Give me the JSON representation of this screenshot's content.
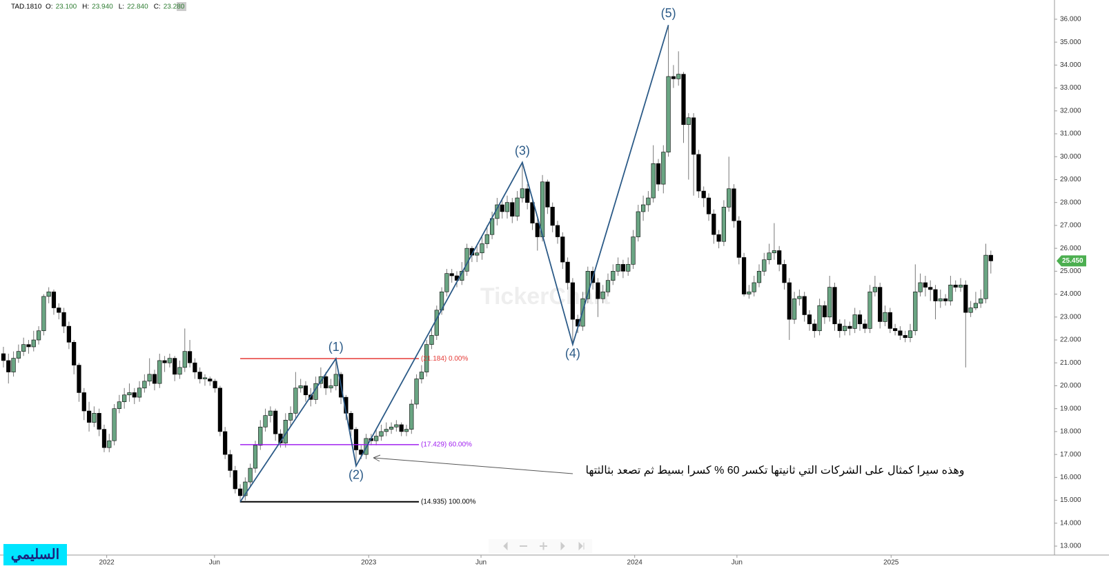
{
  "chart_data": {
    "type": "candlestick",
    "symbol": "TAD.1810",
    "ohlc_header": [
      {
        "key": "O:",
        "value": "23.100"
      },
      {
        "key": "H:",
        "value": "23.940"
      },
      {
        "key": "L:",
        "value": "22.840"
      },
      {
        "key": "C:",
        "value": "23.280"
      }
    ],
    "watermark": "TickerChart",
    "logo": "السليمي",
    "annotation": "وهذه سيرا كمثال على الشركات التي ثانيتها تكسر 60 % كسرا بسيط ثم تصعد بثالثتها",
    "up_color": "#6aa583",
    "down_color": "#000000",
    "xlim": [
      -0.68,
      208.63
    ],
    "ylim": [
      12.61,
      36.84
    ],
    "xticks": [
      {
        "value": 20.5,
        "label": "2022"
      },
      {
        "value": 41.9,
        "label": "Jun"
      },
      {
        "value": 72.5,
        "label": "2023"
      },
      {
        "value": 94.8,
        "label": "Jun"
      },
      {
        "value": 125.3,
        "label": "2024"
      },
      {
        "value": 145.6,
        "label": "Jun"
      },
      {
        "value": 176.2,
        "label": "2025"
      }
    ],
    "yticks": [
      {
        "value": 13,
        "label": "13.000"
      },
      {
        "value": 14,
        "label": "14.000"
      },
      {
        "value": 15,
        "label": "15.000"
      },
      {
        "value": 16,
        "label": "16.000"
      },
      {
        "value": 17,
        "label": "17.000"
      },
      {
        "value": 18,
        "label": "18.000"
      },
      {
        "value": 19,
        "label": "19.000"
      },
      {
        "value": 20,
        "label": "20.000"
      },
      {
        "value": 21,
        "label": "21.000"
      },
      {
        "value": 22,
        "label": "22.000"
      },
      {
        "value": 23,
        "label": "23.000"
      },
      {
        "value": 24,
        "label": "24.000"
      },
      {
        "value": 25,
        "label": "25.000"
      },
      {
        "value": 26,
        "label": "26.000"
      },
      {
        "value": 27,
        "label": "27.000"
      },
      {
        "value": 28,
        "label": "28.000"
      },
      {
        "value": 29,
        "label": "29.000"
      },
      {
        "value": 30,
        "label": "30.000"
      },
      {
        "value": 31,
        "label": "31.000"
      },
      {
        "value": 32,
        "label": "32.000"
      },
      {
        "value": 33,
        "label": "33.000"
      },
      {
        "value": 34,
        "label": "34.000"
      },
      {
        "value": 35,
        "label": "35.000"
      },
      {
        "value": 36,
        "label": "36.000"
      }
    ],
    "last_price": {
      "value": 25.45,
      "label": "25.450",
      "color": "#4caf50"
    },
    "fib_levels": [
      {
        "value": 21.184,
        "label": "(21.184) 0.00%",
        "color": "#e53935"
      },
      {
        "value": 17.429,
        "label": "(17.429) 60.00%",
        "color": "#a020f0"
      },
      {
        "value": 14.935,
        "label": "(14.935) 100.00%",
        "color": "#000000"
      }
    ],
    "waves": [
      {
        "label": null,
        "index": 47,
        "price": 14.935
      },
      {
        "label": "(1)",
        "index": 66,
        "price": 21.184
      },
      {
        "label": "(2)",
        "index": 70,
        "price": 16.5
      },
      {
        "label": "(3)",
        "index": 103,
        "price": 29.75
      },
      {
        "label": "(4)",
        "index": 113,
        "price": 21.8
      },
      {
        "label": "(5)",
        "index": 132,
        "price": 35.75
      }
    ],
    "wave_color": "#2b5a87",
    "candles": [
      [
        21.4,
        21.7,
        20.8,
        21.1
      ],
      [
        21.1,
        21.4,
        20.1,
        20.6
      ],
      [
        20.6,
        21.5,
        20.4,
        21.2
      ],
      [
        21.2,
        21.8,
        21.0,
        21.5
      ],
      [
        21.5,
        22.1,
        21.3,
        21.8
      ],
      [
        21.8,
        22.0,
        21.4,
        21.7
      ],
      [
        21.7,
        22.4,
        21.5,
        22.0
      ],
      [
        22.0,
        22.6,
        21.8,
        22.4
      ],
      [
        22.4,
        24.0,
        22.2,
        23.9
      ],
      [
        23.9,
        24.3,
        23.6,
        24.1
      ],
      [
        24.1,
        24.2,
        23.1,
        23.4
      ],
      [
        23.4,
        23.6,
        22.9,
        23.2
      ],
      [
        23.2,
        23.4,
        22.3,
        22.6
      ],
      [
        22.6,
        22.8,
        21.6,
        21.9
      ],
      [
        21.9,
        22.0,
        20.5,
        20.9
      ],
      [
        20.9,
        21.0,
        19.3,
        19.7
      ],
      [
        19.7,
        19.9,
        18.5,
        18.9
      ],
      [
        18.9,
        19.3,
        18.0,
        18.4
      ],
      [
        18.4,
        19.1,
        18.2,
        18.8
      ],
      [
        18.8,
        19.0,
        17.8,
        18.1
      ],
      [
        18.1,
        18.3,
        17.1,
        17.3
      ],
      [
        17.3,
        17.9,
        17.1,
        17.6
      ],
      [
        17.6,
        19.2,
        17.4,
        19.0
      ],
      [
        19.0,
        19.6,
        18.8,
        19.3
      ],
      [
        19.3,
        19.9,
        19.0,
        19.6
      ],
      [
        19.6,
        20.1,
        19.3,
        19.7
      ],
      [
        19.7,
        19.9,
        19.2,
        19.5
      ],
      [
        19.5,
        20.2,
        19.3,
        19.9
      ],
      [
        19.9,
        20.5,
        19.7,
        20.2
      ],
      [
        20.2,
        21.2,
        20.0,
        20.5
      ],
      [
        20.5,
        20.7,
        19.8,
        20.1
      ],
      [
        20.1,
        21.4,
        19.9,
        21.1
      ],
      [
        21.1,
        21.3,
        20.6,
        21.0
      ],
      [
        21.0,
        21.4,
        20.8,
        21.2
      ],
      [
        21.2,
        21.3,
        20.2,
        20.5
      ],
      [
        20.5,
        21.1,
        20.3,
        20.8
      ],
      [
        20.8,
        22.5,
        20.6,
        21.5
      ],
      [
        21.5,
        22.0,
        20.8,
        21.0
      ],
      [
        21.0,
        21.2,
        20.3,
        20.6
      ],
      [
        20.6,
        20.8,
        20.1,
        20.3
      ],
      [
        20.3,
        20.5,
        20.0,
        20.35
      ],
      [
        20.3,
        20.4,
        20.0,
        20.2
      ],
      [
        20.2,
        20.3,
        19.7,
        19.9
      ],
      [
        19.9,
        20.0,
        17.8,
        18.0
      ],
      [
        18.0,
        18.2,
        16.8,
        17.0
      ],
      [
        17.0,
        17.2,
        16.0,
        16.3
      ],
      [
        16.3,
        16.5,
        15.3,
        15.5
      ],
      [
        15.5,
        15.7,
        14.9,
        15.2
      ],
      [
        15.2,
        16.0,
        15.0,
        15.8
      ],
      [
        15.8,
        16.6,
        15.6,
        16.4
      ],
      [
        16.4,
        17.6,
        16.2,
        17.4
      ],
      [
        17.4,
        18.5,
        17.2,
        18.2
      ],
      [
        18.2,
        19.0,
        18.0,
        18.7
      ],
      [
        18.7,
        19.1,
        18.4,
        18.9
      ],
      [
        18.9,
        19.0,
        17.6,
        17.9
      ],
      [
        17.9,
        18.1,
        17.3,
        17.5
      ],
      [
        17.5,
        18.8,
        17.3,
        18.5
      ],
      [
        18.5,
        19.1,
        18.2,
        18.8
      ],
      [
        18.8,
        20.6,
        18.6,
        19.9
      ],
      [
        19.9,
        20.3,
        19.7,
        20.0
      ],
      [
        20.0,
        20.2,
        19.3,
        19.6
      ],
      [
        19.6,
        19.9,
        19.1,
        19.4
      ],
      [
        19.4,
        20.4,
        19.2,
        20.1
      ],
      [
        20.1,
        20.8,
        19.9,
        20.4
      ],
      [
        20.4,
        20.6,
        19.6,
        19.9
      ],
      [
        19.9,
        20.3,
        19.7,
        20.0
      ],
      [
        20.0,
        21.2,
        19.8,
        20.5
      ],
      [
        20.5,
        20.6,
        19.2,
        19.5
      ],
      [
        19.5,
        19.6,
        18.5,
        18.8
      ],
      [
        18.8,
        18.9,
        17.8,
        18.1
      ],
      [
        18.1,
        18.2,
        16.5,
        17.2
      ],
      [
        17.2,
        17.4,
        16.8,
        17.0
      ],
      [
        17.0,
        17.9,
        16.8,
        17.7
      ],
      [
        17.7,
        17.9,
        17.4,
        17.6
      ],
      [
        17.6,
        18.1,
        17.4,
        17.8
      ],
      [
        17.8,
        18.3,
        17.6,
        18.0
      ],
      [
        18.0,
        18.4,
        17.8,
        18.1
      ],
      [
        18.1,
        18.4,
        17.9,
        18.2
      ],
      [
        18.2,
        18.5,
        18.0,
        18.3
      ],
      [
        18.3,
        18.4,
        17.8,
        18.0
      ],
      [
        18.0,
        18.3,
        17.8,
        18.1
      ],
      [
        18.1,
        19.4,
        17.9,
        19.2
      ],
      [
        19.2,
        20.5,
        19.0,
        20.3
      ],
      [
        20.3,
        20.9,
        20.1,
        20.6
      ],
      [
        20.6,
        22.0,
        20.4,
        21.8
      ],
      [
        21.8,
        22.5,
        21.6,
        22.2
      ],
      [
        22.2,
        23.5,
        22.0,
        23.3
      ],
      [
        23.3,
        24.3,
        23.1,
        24.1
      ],
      [
        24.1,
        25.1,
        23.9,
        24.9
      ],
      [
        24.9,
        25.1,
        24.5,
        24.8
      ],
      [
        24.8,
        25.0,
        24.3,
        24.6
      ],
      [
        24.6,
        25.4,
        24.4,
        25.0
      ],
      [
        25.0,
        26.2,
        24.8,
        26.0
      ],
      [
        26.0,
        26.1,
        25.4,
        25.7
      ],
      [
        25.7,
        26.1,
        25.4,
        25.8
      ],
      [
        25.8,
        26.5,
        25.5,
        26.2
      ],
      [
        26.2,
        27.0,
        26.0,
        26.6
      ],
      [
        26.6,
        27.6,
        26.4,
        27.3
      ],
      [
        27.3,
        28.2,
        27.0,
        27.9
      ],
      [
        27.9,
        28.1,
        27.3,
        27.6
      ],
      [
        27.6,
        28.3,
        27.3,
        28.0
      ],
      [
        28.0,
        28.2,
        27.1,
        27.4
      ],
      [
        27.4,
        28.5,
        27.2,
        28.2
      ],
      [
        28.2,
        29.7,
        28.0,
        28.6
      ],
      [
        28.6,
        28.8,
        27.7,
        28.0
      ],
      [
        28.0,
        28.2,
        26.8,
        27.1
      ],
      [
        27.1,
        27.3,
        25.9,
        26.5
      ],
      [
        26.5,
        29.2,
        26.3,
        28.9
      ],
      [
        28.9,
        29.0,
        27.5,
        27.8
      ],
      [
        27.8,
        28.0,
        26.7,
        27.0
      ],
      [
        27.0,
        27.2,
        26.2,
        26.5
      ],
      [
        26.5,
        26.7,
        25.1,
        25.4
      ],
      [
        25.4,
        25.6,
        24.2,
        24.5
      ],
      [
        24.5,
        24.7,
        21.8,
        22.9
      ],
      [
        22.9,
        23.1,
        22.3,
        22.6
      ],
      [
        22.6,
        24.1,
        22.4,
        23.8
      ],
      [
        23.8,
        25.2,
        23.6,
        25.0
      ],
      [
        25.0,
        25.2,
        24.2,
        24.5
      ],
      [
        24.5,
        24.7,
        23.0,
        23.8
      ],
      [
        23.8,
        24.4,
        23.6,
        24.1
      ],
      [
        24.1,
        24.9,
        23.9,
        24.6
      ],
      [
        24.6,
        25.3,
        24.4,
        25.0
      ],
      [
        25.0,
        25.6,
        24.8,
        25.3
      ],
      [
        25.3,
        25.5,
        24.7,
        25.0
      ],
      [
        25.0,
        25.6,
        24.8,
        25.3
      ],
      [
        25.3,
        26.8,
        25.1,
        26.5
      ],
      [
        26.5,
        27.9,
        26.3,
        27.6
      ],
      [
        27.6,
        28.3,
        27.2,
        27.9
      ],
      [
        27.9,
        28.5,
        27.6,
        28.2
      ],
      [
        28.2,
        30.5,
        28.0,
        29.7
      ],
      [
        29.7,
        29.9,
        28.5,
        28.8
      ],
      [
        28.8,
        30.5,
        28.4,
        30.2
      ],
      [
        30.2,
        35.7,
        30.0,
        33.5
      ],
      [
        33.5,
        34.0,
        33.0,
        33.4
      ],
      [
        33.4,
        34.6,
        33.1,
        33.6
      ],
      [
        33.6,
        33.7,
        30.6,
        31.4
      ],
      [
        31.4,
        31.9,
        29.0,
        31.7
      ],
      [
        31.7,
        31.9,
        28.3,
        30.1
      ],
      [
        30.1,
        30.3,
        28.2,
        28.5
      ],
      [
        28.5,
        28.7,
        27.8,
        28.2
      ],
      [
        28.2,
        28.4,
        27.2,
        27.5
      ],
      [
        27.5,
        27.7,
        26.2,
        26.6
      ],
      [
        26.6,
        26.8,
        26.0,
        26.3
      ],
      [
        26.3,
        28.1,
        26.1,
        27.8
      ],
      [
        27.8,
        30.0,
        27.6,
        28.6
      ],
      [
        28.6,
        28.8,
        26.9,
        27.2
      ],
      [
        27.2,
        27.4,
        25.3,
        25.6
      ],
      [
        25.6,
        25.8,
        23.9,
        24.0
      ],
      [
        24.0,
        24.4,
        23.8,
        24.1
      ],
      [
        24.1,
        24.8,
        23.9,
        24.5
      ],
      [
        24.5,
        25.3,
        24.3,
        25.0
      ],
      [
        25.0,
        25.8,
        24.8,
        25.5
      ],
      [
        25.5,
        26.2,
        25.3,
        25.8
      ],
      [
        25.8,
        27.1,
        25.5,
        25.9
      ],
      [
        25.9,
        26.1,
        25.0,
        25.3
      ],
      [
        25.3,
        25.5,
        24.2,
        24.5
      ],
      [
        24.5,
        24.7,
        22.0,
        22.9
      ],
      [
        22.9,
        24.1,
        22.7,
        23.8
      ],
      [
        23.8,
        24.2,
        23.5,
        23.9
      ],
      [
        23.9,
        24.1,
        22.8,
        23.1
      ],
      [
        23.1,
        23.3,
        22.4,
        22.7
      ],
      [
        22.7,
        22.9,
        22.1,
        22.4
      ],
      [
        22.4,
        23.8,
        22.2,
        23.5
      ],
      [
        23.5,
        23.7,
        22.7,
        23.0
      ],
      [
        23.0,
        24.8,
        22.8,
        24.3
      ],
      [
        24.3,
        24.5,
        22.4,
        22.7
      ],
      [
        22.7,
        22.9,
        22.1,
        22.4
      ],
      [
        22.4,
        22.9,
        22.2,
        22.6
      ],
      [
        22.6,
        22.8,
        22.2,
        22.5
      ],
      [
        22.5,
        23.4,
        22.3,
        23.1
      ],
      [
        23.1,
        23.3,
        22.4,
        22.7
      ],
      [
        22.7,
        22.9,
        22.3,
        22.5
      ],
      [
        22.5,
        24.4,
        22.3,
        24.1
      ],
      [
        24.1,
        24.8,
        23.9,
        24.3
      ],
      [
        24.3,
        24.5,
        22.5,
        22.8
      ],
      [
        22.8,
        23.5,
        22.6,
        23.2
      ],
      [
        23.2,
        23.4,
        22.3,
        22.5
      ],
      [
        22.5,
        22.7,
        22.2,
        22.4
      ],
      [
        22.4,
        22.6,
        22.0,
        22.2
      ],
      [
        22.2,
        22.4,
        21.9,
        22.1
      ],
      [
        22.1,
        22.7,
        21.9,
        22.4
      ],
      [
        22.4,
        25.3,
        22.2,
        24.1
      ],
      [
        24.1,
        24.9,
        23.9,
        24.5
      ],
      [
        24.5,
        24.8,
        23.9,
        24.3
      ],
      [
        24.3,
        24.6,
        23.7,
        24.2
      ],
      [
        24.2,
        24.4,
        22.9,
        23.7
      ],
      [
        23.7,
        24.2,
        23.4,
        23.8
      ],
      [
        23.8,
        24.0,
        23.5,
        23.7
      ],
      [
        23.7,
        24.8,
        23.5,
        24.4
      ],
      [
        24.4,
        24.6,
        24.1,
        24.3
      ],
      [
        24.3,
        24.7,
        24.1,
        24.4
      ],
      [
        24.4,
        24.6,
        20.8,
        23.2
      ],
      [
        23.2,
        23.7,
        23.0,
        23.4
      ],
      [
        23.4,
        24.1,
        23.3,
        23.6
      ],
      [
        23.6,
        24.2,
        23.4,
        23.8
      ],
      [
        23.8,
        26.2,
        23.6,
        25.7
      ],
      [
        25.7,
        25.9,
        24.9,
        25.45
      ]
    ]
  }
}
